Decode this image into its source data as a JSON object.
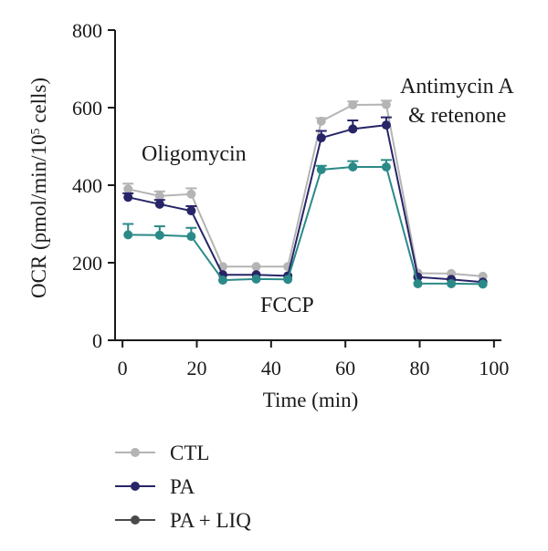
{
  "chart_data": {
    "type": "line",
    "title": "",
    "xlabel": "Time (min)",
    "ylabel": "OCR (pmol/min/10",
    "ylabel_sup": "5",
    "ylabel_end": " cells)",
    "xlim": [
      -2,
      102
    ],
    "ylim": [
      0,
      800
    ],
    "xticks": [
      0,
      20,
      40,
      60,
      80,
      100
    ],
    "yticks": [
      0,
      200,
      400,
      600,
      800
    ],
    "grid": false,
    "legend_position": "bottom-left",
    "annotations": {
      "oligomycin": "Oligomycin",
      "fccp": "FCCP",
      "antimycin_line1": "Antimycin A",
      "antimycin_line2": "& retenone"
    },
    "x": [
      1.5,
      10,
      18.5,
      27,
      36,
      44.5,
      53.5,
      62,
      71,
      79.5,
      88.5,
      97
    ],
    "series": [
      {
        "name": "CTL",
        "color": "#b4b4b4",
        "values": [
          390,
          372,
          377,
          190,
          190,
          190,
          565,
          607,
          608,
          173,
          172,
          165
        ],
        "errors": [
          14,
          12,
          15,
          0,
          0,
          0,
          8,
          9,
          10,
          0,
          0,
          0
        ]
      },
      {
        "name": "PA",
        "color": "#272567",
        "values": [
          369,
          351,
          334,
          169,
          169,
          166,
          522,
          545,
          555,
          163,
          157,
          150
        ],
        "errors": [
          10,
          11,
          12,
          0,
          0,
          0,
          18,
          22,
          20,
          0,
          0,
          0
        ]
      },
      {
        "name": "PA + LIQ",
        "color": "#2b8a87",
        "legend_color": "#4a4a4a",
        "values": [
          272,
          271,
          268,
          155,
          158,
          157,
          440,
          447,
          447,
          146,
          146,
          145
        ],
        "errors": [
          28,
          23,
          22,
          0,
          0,
          0,
          10,
          15,
          18,
          0,
          0,
          0
        ]
      }
    ]
  }
}
